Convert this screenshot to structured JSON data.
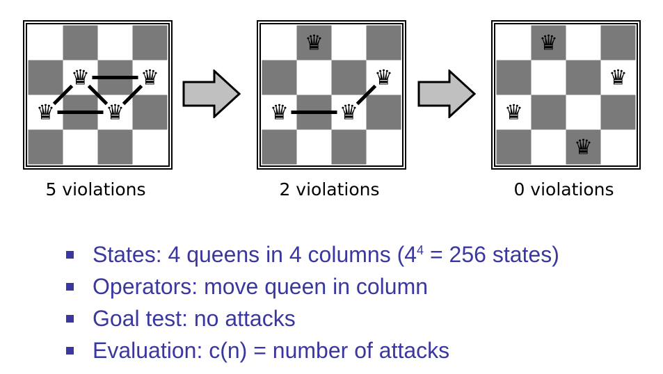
{
  "boards": [
    {
      "caption": "5 violations",
      "queens": [
        [
          1,
          1
        ],
        [
          1,
          3
        ],
        [
          2,
          0
        ],
        [
          2,
          2
        ]
      ],
      "attack_lines": [
        [
          [
            1,
            1
          ],
          [
            1,
            3
          ]
        ],
        [
          [
            1,
            1
          ],
          [
            2,
            0
          ]
        ],
        [
          [
            1,
            1
          ],
          [
            2,
            2
          ]
        ],
        [
          [
            2,
            0
          ],
          [
            2,
            2
          ]
        ],
        [
          [
            2,
            2
          ],
          [
            1,
            3
          ]
        ]
      ]
    },
    {
      "caption": "2 violations",
      "queens": [
        [
          0,
          1
        ],
        [
          1,
          3
        ],
        [
          2,
          0
        ],
        [
          2,
          2
        ]
      ],
      "attack_lines": [
        [
          [
            2,
            0
          ],
          [
            2,
            2
          ]
        ],
        [
          [
            2,
            2
          ],
          [
            1,
            3
          ]
        ]
      ]
    },
    {
      "caption": "0 violations",
      "queens": [
        [
          0,
          1
        ],
        [
          1,
          3
        ],
        [
          2,
          0
        ],
        [
          3,
          2
        ]
      ],
      "attack_lines": []
    }
  ],
  "bullets": {
    "b1_pre": "States: 4 queens in 4 columns (4",
    "b1_sup": "4",
    "b1_post": " = 256 states)",
    "b2": "Operators: move queen in column",
    "b3": "Goal test: no attacks",
    "b4": "Evaluation: c(n) = number of attacks"
  },
  "colors": {
    "dark_square": "#7a7a7a",
    "light_square": "#ffffff",
    "bullet_text": "#3a37a0",
    "arrow_fill": "#c0c0c0"
  },
  "icons": {
    "queen": "queen-icon",
    "arrow": "right-arrow-icon"
  }
}
